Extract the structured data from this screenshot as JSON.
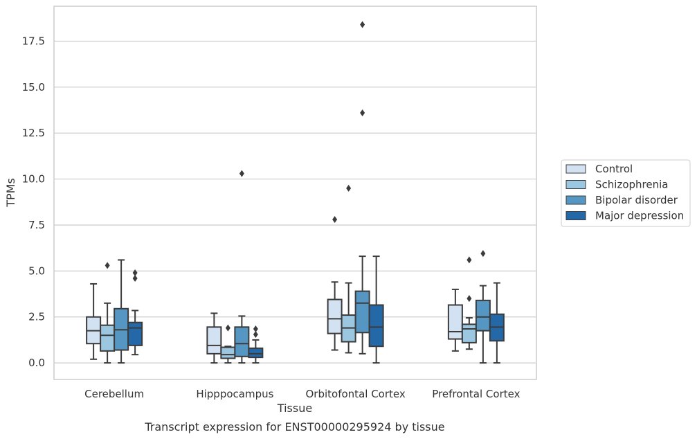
{
  "chart_data": {
    "type": "boxplot",
    "caption": "Transcript expression for ENST00000295924 by tissue",
    "xlabel": "Tissue",
    "ylabel": "TPMs",
    "ylim": [
      -0.9,
      19.4
    ],
    "yticks": [
      0.0,
      2.5,
      5.0,
      7.5,
      10.0,
      12.5,
      15.0,
      17.5
    ],
    "ytick_labels": [
      "0.0",
      "2.5",
      "5.0",
      "7.5",
      "10.0",
      "12.5",
      "15.0",
      "17.5"
    ],
    "grid": "horizontal",
    "legend_position": "right",
    "categories": [
      "Cerebellum",
      "Hipppocampus",
      "Orbitofontal Cortex",
      "Prefrontal Cortex"
    ],
    "series": [
      {
        "name": "Control",
        "color": "#d3e2f2",
        "boxes": [
          {
            "whisker_low": 0.2,
            "q1": 1.05,
            "median": 1.75,
            "q3": 2.5,
            "whisker_high": 4.3,
            "outliers": []
          },
          {
            "whisker_low": 0.0,
            "q1": 0.5,
            "median": 0.95,
            "q3": 1.95,
            "whisker_high": 2.7,
            "outliers": []
          },
          {
            "whisker_low": 0.7,
            "q1": 1.6,
            "median": 2.4,
            "q3": 3.45,
            "whisker_high": 4.4,
            "outliers": [
              7.8
            ]
          },
          {
            "whisker_low": 0.65,
            "q1": 1.3,
            "median": 1.7,
            "q3": 3.15,
            "whisker_high": 4.0,
            "outliers": []
          }
        ]
      },
      {
        "name": "Schizophrenia",
        "color": "#9bc7e0",
        "boxes": [
          {
            "whisker_low": 0.0,
            "q1": 0.65,
            "median": 1.5,
            "q3": 2.05,
            "whisker_high": 3.25,
            "outliers": [
              5.3
            ]
          },
          {
            "whisker_low": 0.0,
            "q1": 0.25,
            "median": 0.45,
            "q3": 0.85,
            "whisker_high": 0.9,
            "outliers": [
              1.9
            ]
          },
          {
            "whisker_low": 0.55,
            "q1": 1.15,
            "median": 1.9,
            "q3": 2.6,
            "whisker_high": 4.35,
            "outliers": [
              9.5
            ]
          },
          {
            "whisker_low": 0.75,
            "q1": 1.1,
            "median": 1.85,
            "q3": 2.1,
            "whisker_high": 2.45,
            "outliers": [
              3.5,
              5.6
            ]
          }
        ]
      },
      {
        "name": "Bipolar disorder",
        "color": "#5596c3",
        "boxes": [
          {
            "whisker_low": 0.0,
            "q1": 0.7,
            "median": 1.8,
            "q3": 2.95,
            "whisker_high": 5.6,
            "outliers": []
          },
          {
            "whisker_low": 0.0,
            "q1": 0.35,
            "median": 1.05,
            "q3": 1.95,
            "whisker_high": 2.55,
            "outliers": [
              10.3
            ]
          },
          {
            "whisker_low": 0.5,
            "q1": 1.65,
            "median": 3.25,
            "q3": 3.9,
            "whisker_high": 5.8,
            "outliers": [
              13.6,
              18.4
            ]
          },
          {
            "whisker_low": 0.0,
            "q1": 1.75,
            "median": 2.5,
            "q3": 3.4,
            "whisker_high": 4.2,
            "outliers": [
              5.95
            ]
          }
        ]
      },
      {
        "name": "Major depression",
        "color": "#2468a8",
        "boxes": [
          {
            "whisker_low": 0.45,
            "q1": 0.95,
            "median": 1.9,
            "q3": 2.2,
            "whisker_high": 2.85,
            "outliers": [
              4.6,
              4.9
            ]
          },
          {
            "whisker_low": 0.0,
            "q1": 0.3,
            "median": 0.5,
            "q3": 0.8,
            "whisker_high": 1.25,
            "outliers": [
              1.55,
              1.85
            ]
          },
          {
            "whisker_low": 0.0,
            "q1": 0.9,
            "median": 1.95,
            "q3": 3.15,
            "whisker_high": 5.8,
            "outliers": []
          },
          {
            "whisker_low": 0.0,
            "q1": 1.2,
            "median": 1.95,
            "q3": 2.65,
            "whisker_high": 4.35,
            "outliers": []
          }
        ]
      }
    ]
  }
}
